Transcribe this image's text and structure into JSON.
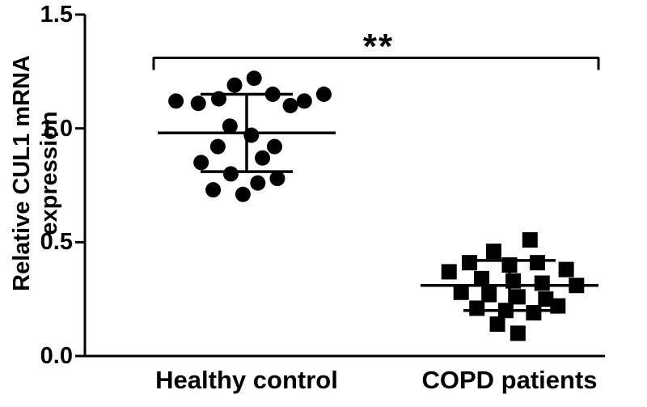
{
  "figure": {
    "background": "#ffffff",
    "ink_color": "#000000"
  },
  "chart_data": {
    "type": "scatter",
    "title": "",
    "xlabel": "",
    "ylabel": "Relative CUL1 mRNA expression",
    "ylabel_lines": [
      "Relative CUL1 mRNA",
      "expression"
    ],
    "ylim": [
      0.0,
      1.5
    ],
    "yticks": [
      0.0,
      0.5,
      1.0,
      1.5
    ],
    "ytick_labels": [
      "0.0",
      "0.5",
      "1.0",
      "1.5"
    ],
    "categories": [
      "Healthy control",
      "COPD patients"
    ],
    "grid": false,
    "legend": "none",
    "marker_color": "#000000",
    "error_bar_style": "mean_with_sd_caps",
    "significance": {
      "label": "**",
      "y_value": 1.31,
      "between": [
        "Healthy control",
        "COPD patients"
      ]
    },
    "series": [
      {
        "name": "Healthy control",
        "marker": "circle",
        "mean": 0.98,
        "error_upper": 1.15,
        "error_lower": 0.81,
        "points": [
          [
            -0.76,
            1.12
          ],
          [
            -0.52,
            1.11
          ],
          [
            -0.3,
            1.13
          ],
          [
            -0.13,
            1.19
          ],
          [
            0.08,
            1.22
          ],
          [
            0.28,
            1.15
          ],
          [
            0.47,
            1.1
          ],
          [
            0.62,
            1.12
          ],
          [
            0.83,
            1.15
          ],
          [
            -0.18,
            1.01
          ],
          [
            0.05,
            0.97
          ],
          [
            0.3,
            0.92
          ],
          [
            -0.31,
            0.92
          ],
          [
            -0.49,
            0.85
          ],
          [
            -0.17,
            0.8
          ],
          [
            0.12,
            0.76
          ],
          [
            0.33,
            0.78
          ],
          [
            -0.04,
            0.71
          ],
          [
            -0.36,
            0.73
          ],
          [
            0.17,
            0.87
          ]
        ]
      },
      {
        "name": "COPD patients",
        "marker": "square",
        "mean": 0.31,
        "error_upper": 0.42,
        "error_lower": 0.2,
        "points": [
          [
            0.22,
            0.51
          ],
          [
            -0.17,
            0.46
          ],
          [
            -0.43,
            0.41
          ],
          [
            0.0,
            0.4
          ],
          [
            0.3,
            0.41
          ],
          [
            0.61,
            0.38
          ],
          [
            -0.65,
            0.37
          ],
          [
            -0.3,
            0.34
          ],
          [
            0.04,
            0.33
          ],
          [
            0.35,
            0.32
          ],
          [
            0.72,
            0.31
          ],
          [
            -0.52,
            0.28
          ],
          [
            -0.22,
            0.27
          ],
          [
            0.09,
            0.26
          ],
          [
            0.39,
            0.25
          ],
          [
            -0.04,
            0.2
          ],
          [
            -0.35,
            0.21
          ],
          [
            0.26,
            0.19
          ],
          [
            0.52,
            0.22
          ],
          [
            -0.13,
            0.14
          ],
          [
            0.09,
            0.1
          ]
        ]
      }
    ]
  }
}
